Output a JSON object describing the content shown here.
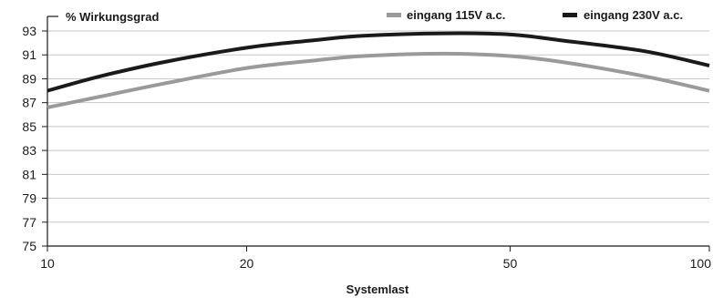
{
  "chart_data": {
    "type": "line",
    "ylabel": "% Wirkungsgrad",
    "xlabel": "Systemlast",
    "x_ticks": [
      10,
      20,
      50,
      100
    ],
    "y_ticks": [
      75,
      77,
      79,
      81,
      83,
      85,
      87,
      89,
      91,
      93
    ],
    "ylim": [
      75,
      93
    ],
    "grid": true,
    "legend_position": "top-right",
    "series": [
      {
        "name": "eingang 115V a.c.",
        "color": "#9a9a9a",
        "x": [
          10,
          12,
          15,
          20,
          25,
          30,
          40,
          50,
          60,
          80,
          100
        ],
        "y": [
          86.6,
          87.5,
          88.6,
          89.9,
          90.5,
          90.9,
          91.1,
          90.9,
          90.4,
          89.2,
          88.0
        ]
      },
      {
        "name": "eingang 230V a.c.",
        "color": "#1a1a1a",
        "x": [
          10,
          12,
          15,
          20,
          25,
          30,
          40,
          50,
          60,
          80,
          100
        ],
        "y": [
          88.0,
          89.2,
          90.4,
          91.6,
          92.2,
          92.6,
          92.8,
          92.7,
          92.2,
          91.3,
          90.1
        ]
      }
    ]
  }
}
